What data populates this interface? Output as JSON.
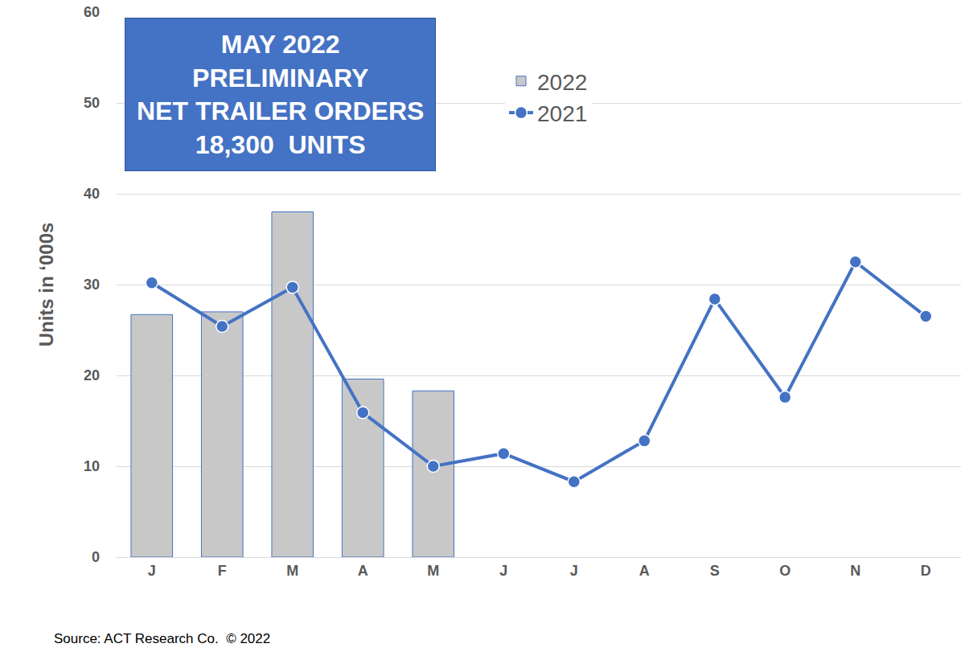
{
  "chart_data": {
    "type": "bar",
    "categories": [
      "J",
      "F",
      "M",
      "A",
      "M",
      "J",
      "J",
      "A",
      "S",
      "O",
      "N",
      "D"
    ],
    "series": [
      {
        "name": "2022",
        "type": "bar",
        "color": "#c8c8c8",
        "values": [
          26.7,
          27.0,
          38.0,
          19.6,
          18.3,
          null,
          null,
          null,
          null,
          null,
          null,
          null
        ]
      },
      {
        "name": "2021",
        "type": "line",
        "color": "#4472c4",
        "marker": "circle",
        "values": [
          30.2,
          25.4,
          29.7,
          15.9,
          10.0,
          11.4,
          8.3,
          12.8,
          28.4,
          17.6,
          32.5,
          26.5
        ]
      }
    ],
    "ylim": [
      0,
      60
    ],
    "yticks": [
      0,
      10,
      20,
      30,
      40,
      50,
      60
    ],
    "y_label": "Units in ‘000s",
    "annotations": [
      "MAY 2022",
      "PRELIMINARY",
      "NET TRAILER ORDERS",
      "18,300  UNITS"
    ],
    "source": "Source: ACT Research Co.  © 2022",
    "grid": true,
    "legend": "top"
  }
}
